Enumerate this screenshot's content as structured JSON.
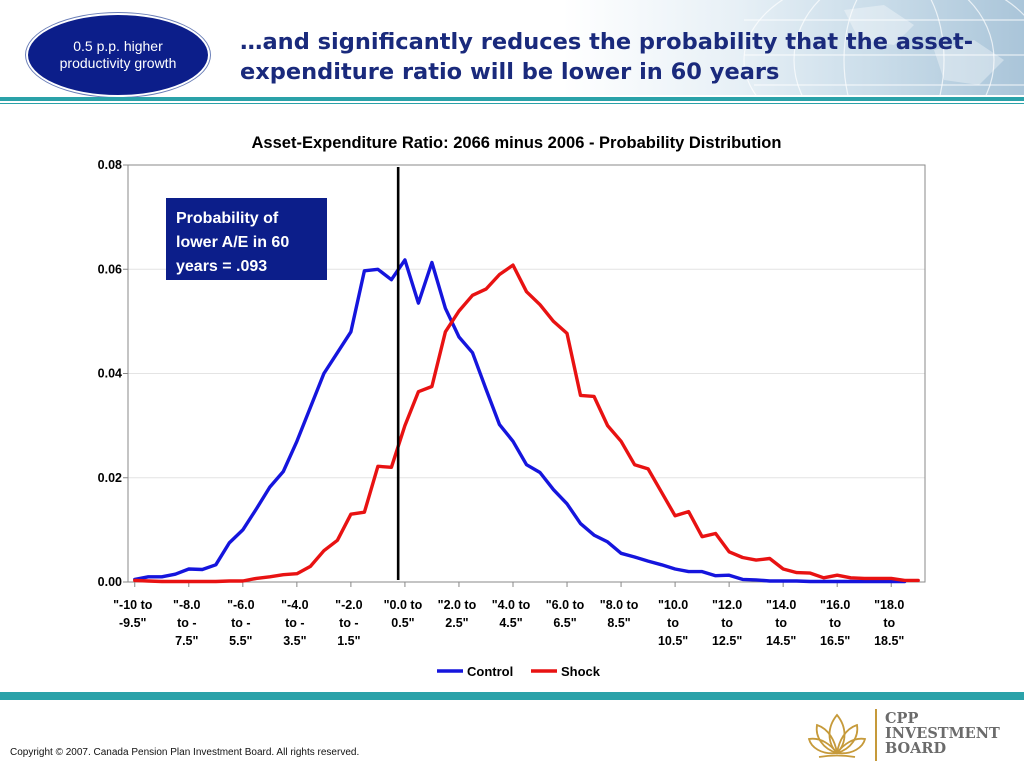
{
  "badge": {
    "text": "0.5 p.p. higher productivity growth"
  },
  "title": "…and significantly reduces the probability that the asset-expenditure ratio will be lower in 60 years",
  "footer": {
    "copyright": "Copyright © 2007. Canada Pension Plan Investment Board. All rights reserved.",
    "logo_lines": [
      "CPP",
      "INVESTMENT",
      "BOARD"
    ]
  },
  "colors": {
    "title": "#1a2a7c",
    "rule": "#2aa2a9",
    "badge": "#0c1e8a",
    "control": "#1515dd",
    "shock": "#e81212",
    "callout": "#0c1e8a"
  },
  "chart_data": {
    "type": "line",
    "title": "Asset-Expenditure Ratio: 2066 minus 2006 - Probability Distribution",
    "xlabel": "",
    "ylabel": "",
    "ylim": [
      0,
      0.08
    ],
    "yticks": [
      "0.00",
      "0.02",
      "0.04",
      "0.06",
      "0.08"
    ],
    "grid": true,
    "legend": "bottom",
    "x_tick_labels": [
      "\"-10 to -9.5\"",
      "\"-8.0 to -7.5\"",
      "\"-6.0 to -5.5\"",
      "\"-4.0 to -3.5\"",
      "\"-2.0 to -1.5\"",
      "\"0.0 to 0.5\"",
      "\"2.0 to 2.5\"",
      "\"4.0 to 4.5\"",
      "\"6.0 to 6.5\"",
      "\"8.0 to 8.5\"",
      "\"10.0 to 10.5\"",
      "\"12.0 to 12.5\"",
      "\"14.0 to 14.5\"",
      "\"16.0 to 16.5\"",
      "\"18.0 to 18.5\""
    ],
    "x_tick_lines": [
      [
        "\"-10 to",
        "-9.5\""
      ],
      [
        "\"-8.0",
        "to -",
        "7.5\""
      ],
      [
        "\"-6.0",
        "to -",
        "5.5\""
      ],
      [
        "\"-4.0",
        "to -",
        "3.5\""
      ],
      [
        "\"-2.0",
        "to -",
        "1.5\""
      ],
      [
        "\"0.0 to",
        "0.5\""
      ],
      [
        "\"2.0 to",
        "2.5\""
      ],
      [
        "\"4.0 to",
        "4.5\""
      ],
      [
        "\"6.0 to",
        "6.5\""
      ],
      [
        "\"8.0 to",
        "8.5\""
      ],
      [
        "\"10.0",
        "to",
        "10.5\""
      ],
      [
        "\"12.0",
        "to",
        "12.5\""
      ],
      [
        "\"14.0",
        "to",
        "14.5\""
      ],
      [
        "\"16.0",
        "to",
        "16.5\""
      ],
      [
        "\"18.0",
        "to",
        "18.5\""
      ]
    ],
    "x_start": -10,
    "x_step": 0.5,
    "reference_line_x": 0,
    "series": [
      {
        "name": "Control",
        "values": [
          0.0005,
          0.001,
          0.001,
          0.0015,
          0.0025,
          0.0024,
          0.0033,
          0.0075,
          0.01,
          0.014,
          0.0182,
          0.0212,
          0.027,
          0.0335,
          0.04,
          0.044,
          0.048,
          0.0597,
          0.06,
          0.058,
          0.0618,
          0.0535,
          0.0613,
          0.0525,
          0.047,
          0.044,
          0.037,
          0.0302,
          0.027,
          0.0225,
          0.021,
          0.0177,
          0.015,
          0.0112,
          0.009,
          0.0077,
          0.0055,
          0.0048,
          0.004,
          0.0033,
          0.0025,
          0.002,
          0.002,
          0.0012,
          0.0013,
          0.0005,
          0.0004,
          0.0002,
          0.0002,
          0.0002,
          0.0001,
          0.0001,
          0.0001,
          0.0001,
          0.0001,
          0.0001,
          0.0001,
          0.0001
        ]
      },
      {
        "name": "Shock",
        "values": [
          0.0003,
          0.0002,
          0.0001,
          0.0001,
          0.0001,
          0.0001,
          0.0001,
          0.0002,
          0.0002,
          0.0007,
          0.001,
          0.0014,
          0.0016,
          0.003,
          0.006,
          0.008,
          0.013,
          0.0134,
          0.0222,
          0.022,
          0.03,
          0.0365,
          0.0375,
          0.048,
          0.052,
          0.055,
          0.0562,
          0.059,
          0.0608,
          0.0557,
          0.0532,
          0.05,
          0.0477,
          0.0358,
          0.0356,
          0.03,
          0.027,
          0.0225,
          0.0217,
          0.0172,
          0.0127,
          0.0135,
          0.0087,
          0.0093,
          0.0058,
          0.0047,
          0.0042,
          0.0045,
          0.0025,
          0.0018,
          0.0017,
          0.0008,
          0.0013,
          0.0008,
          0.0007,
          0.0007,
          0.0007,
          0.0003,
          0.0003
        ]
      }
    ],
    "annotation": "Probability of lower A/E in 60 years = .093"
  }
}
